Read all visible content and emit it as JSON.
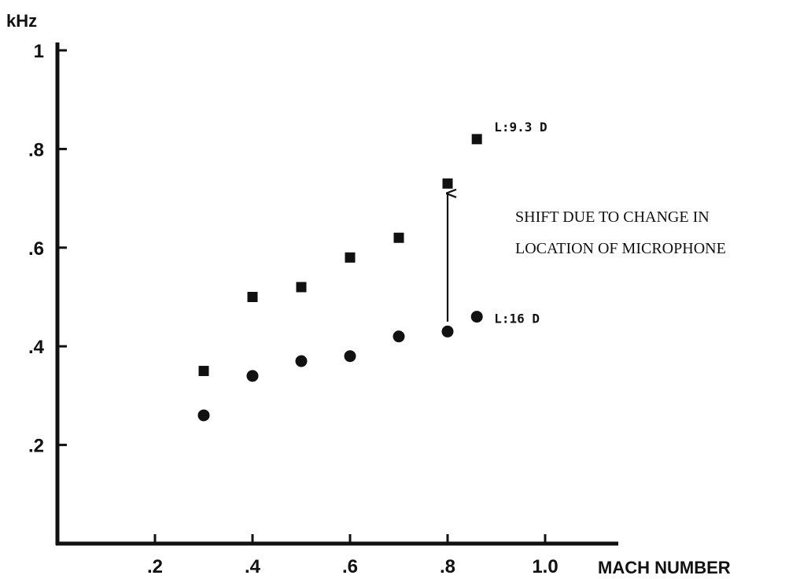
{
  "chart_data": {
    "type": "scatter",
    "ylabel": "kHz",
    "xlabel": "MACH NUMBER",
    "xlim": [
      0,
      1.1
    ],
    "ylim": [
      0,
      1.0
    ],
    "x_ticks": [
      {
        "value": 0.2,
        "label": ".2"
      },
      {
        "value": 0.4,
        "label": ".4"
      },
      {
        "value": 0.6,
        "label": ".6"
      },
      {
        "value": 0.8,
        "label": ".8"
      },
      {
        "value": 1.0,
        "label": "1.0"
      }
    ],
    "y_ticks": [
      {
        "value": 0.2,
        "label": ".2"
      },
      {
        "value": 0.4,
        "label": ".4"
      },
      {
        "value": 0.6,
        "label": ".6"
      },
      {
        "value": 0.8,
        "label": ".8"
      },
      {
        "value": 1.0,
        "label": "1"
      }
    ],
    "grid": false,
    "series": [
      {
        "name": "L:9.3 D",
        "marker": "square",
        "points": [
          {
            "x": 0.3,
            "y": 0.35
          },
          {
            "x": 0.4,
            "y": 0.5
          },
          {
            "x": 0.5,
            "y": 0.52
          },
          {
            "x": 0.6,
            "y": 0.58
          },
          {
            "x": 0.7,
            "y": 0.62
          },
          {
            "x": 0.8,
            "y": 0.73
          },
          {
            "x": 0.86,
            "y": 0.82
          }
        ]
      },
      {
        "name": "L:16 D",
        "marker": "circle",
        "points": [
          {
            "x": 0.3,
            "y": 0.26
          },
          {
            "x": 0.4,
            "y": 0.34
          },
          {
            "x": 0.5,
            "y": 0.37
          },
          {
            "x": 0.6,
            "y": 0.38
          },
          {
            "x": 0.7,
            "y": 0.42
          },
          {
            "x": 0.8,
            "y": 0.43
          },
          {
            "x": 0.86,
            "y": 0.46
          }
        ]
      }
    ],
    "annotations": [
      {
        "text_lines": [
          "SHIFT DUE TO CHANGE IN",
          "LOCATION OF MICROPHONE"
        ],
        "arrow": {
          "x": 0.8,
          "from_y": 0.45,
          "to_y": 0.71
        }
      }
    ]
  }
}
